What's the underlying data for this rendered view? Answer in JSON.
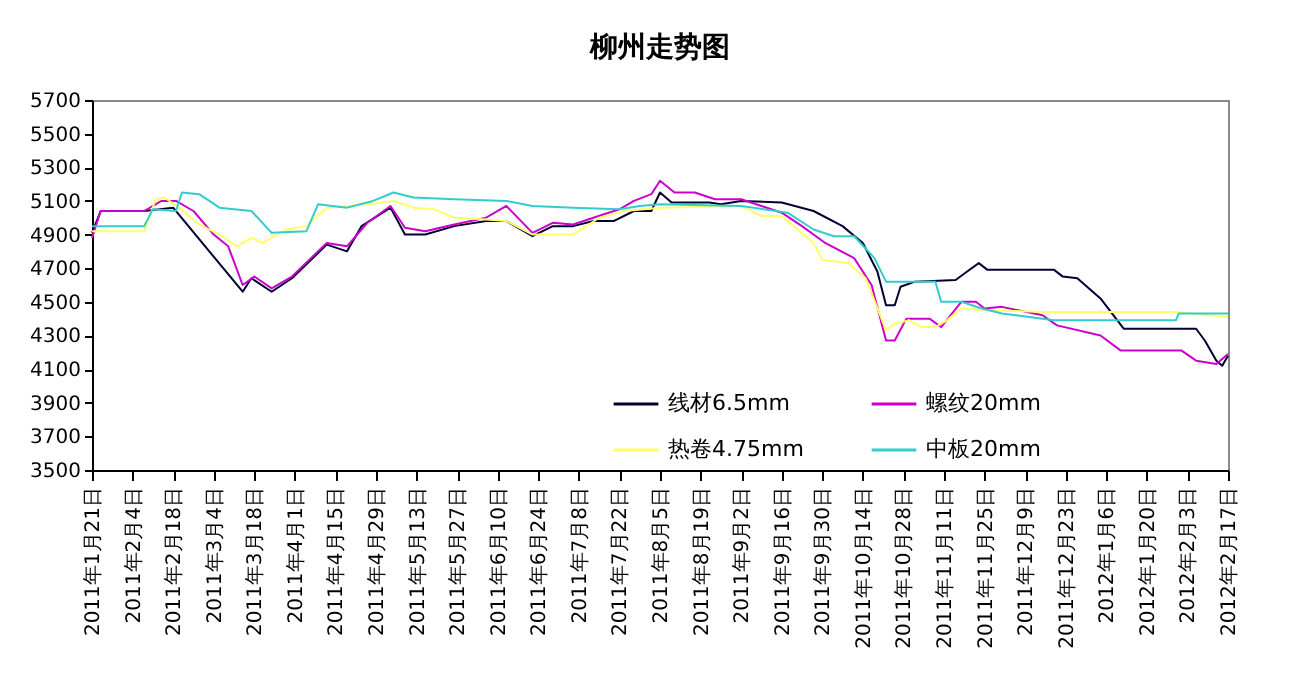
{
  "chart_data": {
    "type": "line",
    "title": "柳州走势图",
    "legend": "bottom right",
    "marker": "none",
    "line_style": "solid",
    "grid": false,
    "xlim": [
      "2011-01-21",
      "2012-02-17"
    ],
    "xticks": [
      {
        "value": "2011-01-21",
        "label": "2011年1月21日"
      },
      {
        "value": "2011-02-04",
        "label": "2011年2月4日"
      },
      {
        "value": "2011-02-18",
        "label": "2011年2月18日"
      },
      {
        "value": "2011-03-04",
        "label": "2011年3月4日"
      },
      {
        "value": "2011-03-18",
        "label": "2011年3月18日"
      },
      {
        "value": "2011-04-01",
        "label": "2011年4月1日"
      },
      {
        "value": "2011-04-15",
        "label": "2011年4月15日"
      },
      {
        "value": "2011-04-29",
        "label": "2011年4月29日"
      },
      {
        "value": "2011-05-13",
        "label": "2011年5月13日"
      },
      {
        "value": "2011-05-27",
        "label": "2011年5月27日"
      },
      {
        "value": "2011-06-10",
        "label": "2011年6月10日"
      },
      {
        "value": "2011-06-24",
        "label": "2011年6月24日"
      },
      {
        "value": "2011-07-08",
        "label": "2011年7月8日"
      },
      {
        "value": "2011-07-22",
        "label": "2011年7月22日"
      },
      {
        "value": "2011-08-05",
        "label": "2011年8月5日"
      },
      {
        "value": "2011-08-19",
        "label": "2011年8月19日"
      },
      {
        "value": "2011-09-02",
        "label": "2011年9月2日"
      },
      {
        "value": "2011-09-16",
        "label": "2011年9月16日"
      },
      {
        "value": "2011-09-30",
        "label": "2011年9月30日"
      },
      {
        "value": "2011-10-14",
        "label": "2011年10月14日"
      },
      {
        "value": "2011-10-28",
        "label": "2011年10月28日"
      },
      {
        "value": "2011-11-11",
        "label": "2011年11月11日"
      },
      {
        "value": "2011-11-25",
        "label": "2011年11月25日"
      },
      {
        "value": "2011-12-09",
        "label": "2011年12月9日"
      },
      {
        "value": "2011-12-23",
        "label": "2011年12月23日"
      },
      {
        "value": "2012-01-06",
        "label": "2012年1月6日"
      },
      {
        "value": "2012-01-20",
        "label": "2012年1月20日"
      },
      {
        "value": "2012-02-03",
        "label": "2012年2月3日"
      },
      {
        "value": "2012-02-17",
        "label": "2012年2月17日"
      }
    ],
    "ylim": [
      3500,
      5700
    ],
    "yticks": [
      3500,
      3700,
      3900,
      4100,
      4300,
      4500,
      4700,
      4900,
      5100,
      5300,
      5500,
      5700
    ],
    "series": [
      {
        "name": "线材6.5mm",
        "color": "#000033",
        "x": [
          "2011-01-21",
          "2011-01-24",
          "2011-02-08",
          "2011-02-18",
          "2011-03-14",
          "2011-03-17",
          "2011-03-24",
          "2011-03-31",
          "2011-04-12",
          "2011-04-19",
          "2011-04-24",
          "2011-05-04",
          "2011-05-09",
          "2011-05-16",
          "2011-05-26",
          "2011-06-06",
          "2011-06-13",
          "2011-06-22",
          "2011-06-29",
          "2011-07-06",
          "2011-07-13",
          "2011-07-20",
          "2011-07-27",
          "2011-08-02",
          "2011-08-05",
          "2011-08-09",
          "2011-08-22",
          "2011-08-26",
          "2011-09-02",
          "2011-09-16",
          "2011-09-27",
          "2011-10-07",
          "2011-10-14",
          "2011-10-19",
          "2011-10-22",
          "2011-10-25",
          "2011-10-27",
          "2011-11-01",
          "2011-11-15",
          "2011-11-19",
          "2011-11-23",
          "2011-11-26",
          "2011-12-19",
          "2011-12-22",
          "2011-12-27",
          "2012-01-04",
          "2012-01-12",
          "2012-02-06",
          "2012-02-09",
          "2012-02-13",
          "2012-02-15",
          "2012-02-17"
        ],
        "values": [
          4910,
          5040,
          5040,
          5060,
          4560,
          4640,
          4560,
          4640,
          4840,
          4800,
          4950,
          5060,
          4900,
          4900,
          4950,
          4980,
          4980,
          4890,
          4950,
          4950,
          4980,
          4980,
          5040,
          5040,
          5150,
          5090,
          5090,
          5080,
          5100,
          5090,
          5040,
          4950,
          4850,
          4680,
          4480,
          4480,
          4590,
          4620,
          4630,
          4680,
          4730,
          4690,
          4690,
          4650,
          4640,
          4520,
          4340,
          4340,
          4270,
          4150,
          4120,
          4180
        ]
      },
      {
        "name": "螺纹20mm",
        "color": "#cc00cc",
        "x": [
          "2011-01-21",
          "2011-01-24",
          "2011-02-08",
          "2011-02-14",
          "2011-02-19",
          "2011-02-25",
          "2011-03-04",
          "2011-03-09",
          "2011-03-14",
          "2011-03-18",
          "2011-03-24",
          "2011-03-31",
          "2011-04-12",
          "2011-04-19",
          "2011-04-26",
          "2011-05-04",
          "2011-05-09",
          "2011-05-16",
          "2011-05-26",
          "2011-06-06",
          "2011-06-13",
          "2011-06-22",
          "2011-06-29",
          "2011-07-06",
          "2011-07-13",
          "2011-07-22",
          "2011-07-27",
          "2011-08-02",
          "2011-08-05",
          "2011-08-10",
          "2011-08-17",
          "2011-08-24",
          "2011-09-02",
          "2011-09-09",
          "2011-09-16",
          "2011-09-23",
          "2011-10-01",
          "2011-10-11",
          "2011-10-17",
          "2011-10-22",
          "2011-10-25",
          "2011-10-29",
          "2011-11-06",
          "2011-11-10",
          "2011-11-17",
          "2011-11-22",
          "2011-11-25",
          "2011-12-01",
          "2011-12-15",
          "2011-12-20",
          "2012-01-04",
          "2012-01-11",
          "2012-02-01",
          "2012-02-06",
          "2012-02-13",
          "2012-02-17"
        ],
        "values": [
          4880,
          5040,
          5040,
          5100,
          5100,
          5040,
          4900,
          4830,
          4600,
          4650,
          4580,
          4650,
          4850,
          4830,
          4970,
          5070,
          4940,
          4920,
          4960,
          5000,
          5070,
          4910,
          4970,
          4960,
          5000,
          5050,
          5100,
          5140,
          5220,
          5150,
          5150,
          5110,
          5110,
          5070,
          5030,
          4950,
          4850,
          4760,
          4600,
          4270,
          4270,
          4400,
          4400,
          4350,
          4500,
          4500,
          4460,
          4470,
          4420,
          4360,
          4300,
          4210,
          4210,
          4150,
          4130,
          4190
        ]
      },
      {
        "name": "热卷4.75mm",
        "color": "#ffff66",
        "x": [
          "2011-01-21",
          "2011-02-08",
          "2011-02-12",
          "2011-02-15",
          "2011-02-20",
          "2011-02-27",
          "2011-03-06",
          "2011-03-12",
          "2011-03-17",
          "2011-03-21",
          "2011-03-29",
          "2011-04-05",
          "2011-04-12",
          "2011-04-19",
          "2011-04-26",
          "2011-05-05",
          "2011-05-12",
          "2011-05-19",
          "2011-05-26",
          "2011-06-06",
          "2011-06-13",
          "2011-06-22",
          "2011-07-06",
          "2011-07-15",
          "2011-07-24",
          "2011-08-05",
          "2011-09-02",
          "2011-09-09",
          "2011-09-16",
          "2011-09-27",
          "2011-09-30",
          "2011-10-09",
          "2011-10-15",
          "2011-10-22",
          "2011-10-25",
          "2011-10-30",
          "2011-11-03",
          "2011-11-08",
          "2011-11-12",
          "2011-11-17",
          "2011-11-26",
          "2011-12-15",
          "2012-01-07",
          "2012-01-30",
          "2012-02-17"
        ],
        "values": [
          4920,
          4920,
          5110,
          5120,
          5060,
          4960,
          4900,
          4830,
          4880,
          4850,
          4930,
          4950,
          5060,
          5070,
          5080,
          5100,
          5060,
          5050,
          5000,
          4990,
          4980,
          4900,
          4900,
          5000,
          5040,
          5060,
          5070,
          5010,
          5010,
          4850,
          4750,
          4730,
          4640,
          4330,
          4370,
          4390,
          4350,
          4350,
          4390,
          4460,
          4450,
          4440,
          4440,
          4440,
          4410
        ]
      },
      {
        "name": "中板20mm",
        "color": "#33cccc",
        "x": [
          "2011-01-21",
          "2011-02-08",
          "2011-02-11",
          "2011-02-19",
          "2011-02-21",
          "2011-02-27",
          "2011-03-06",
          "2011-03-17",
          "2011-03-24",
          "2011-04-05",
          "2011-04-09",
          "2011-04-19",
          "2011-04-28",
          "2011-05-05",
          "2011-05-12",
          "2011-05-26",
          "2011-06-13",
          "2011-06-22",
          "2011-07-06",
          "2011-07-22",
          "2011-07-29",
          "2011-08-05",
          "2011-09-02",
          "2011-09-18",
          "2011-09-27",
          "2011-10-04",
          "2011-10-11",
          "2011-10-18",
          "2011-10-22",
          "2011-10-27",
          "2011-11-08",
          "2011-11-10",
          "2011-11-17",
          "2011-11-24",
          "2011-12-01",
          "2011-12-15",
          "2011-12-19",
          "2012-01-07",
          "2012-01-30",
          "2012-01-31",
          "2012-02-17"
        ],
        "values": [
          4950,
          4950,
          5050,
          5040,
          5150,
          5140,
          5060,
          5040,
          4910,
          4920,
          5080,
          5060,
          5100,
          5150,
          5120,
          5110,
          5100,
          5070,
          5060,
          5050,
          5070,
          5080,
          5070,
          5030,
          4930,
          4890,
          4890,
          4760,
          4620,
          4620,
          4620,
          4500,
          4500,
          4460,
          4430,
          4400,
          4390,
          4390,
          4390,
          4430,
          4430
        ]
      }
    ]
  }
}
